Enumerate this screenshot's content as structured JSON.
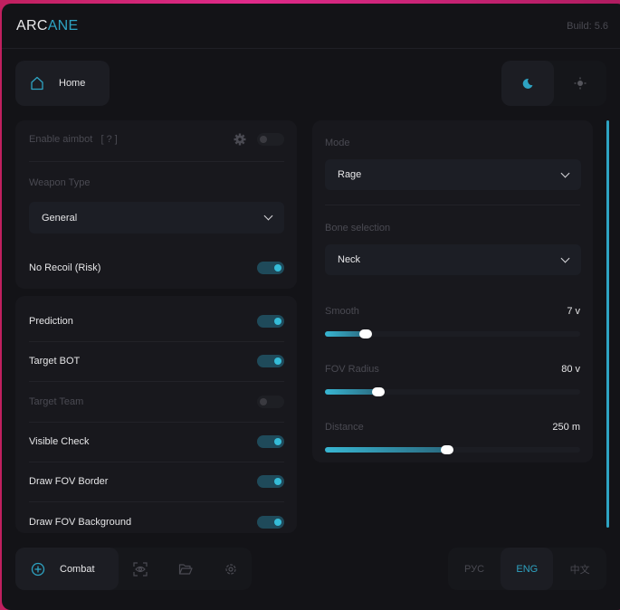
{
  "header": {
    "logo_a": "ARC",
    "logo_b": "ANE",
    "build": "Build: 5.6"
  },
  "top_nav": {
    "home_label": "Home",
    "theme": {
      "dark_icon": "moon-icon",
      "light_icon": "sun-icon",
      "active": "dark"
    }
  },
  "accent": "#2ea3c2",
  "left_panel": {
    "enable_aimbot": {
      "label": "Enable aimbot",
      "help": "[ ? ]",
      "enabled": false
    },
    "weapon_type": {
      "label": "Weapon Type",
      "value": "General"
    },
    "no_recoil": {
      "label": "No Recoil (Risk)",
      "enabled": true
    }
  },
  "toggles": [
    {
      "label": "Prediction",
      "enabled": true
    },
    {
      "label": "Target BOT",
      "enabled": true
    },
    {
      "label": "Target Team",
      "enabled": false
    },
    {
      "label": "Visible Check",
      "enabled": true
    },
    {
      "label": "Draw FOV Border",
      "enabled": true
    },
    {
      "label": "Draw FOV Background",
      "enabled": true
    }
  ],
  "right_panel": {
    "mode": {
      "label": "Mode",
      "value": "Rage"
    },
    "bone": {
      "label": "Bone selection",
      "value": "Neck"
    },
    "sliders": [
      {
        "label": "Smooth",
        "value": "7 v",
        "fraction": 0.16
      },
      {
        "label": "FOV Radius",
        "value": "80 v",
        "fraction": 0.21
      },
      {
        "label": "Distance",
        "value": "250 m",
        "fraction": 0.48
      }
    ]
  },
  "bottom_nav": {
    "active_label": "Combat",
    "items": [
      "crosshair-icon",
      "eye-scan-icon",
      "folder-icon",
      "gear-icon"
    ]
  },
  "languages": {
    "items": [
      "РУС",
      "ENG",
      "中文"
    ],
    "active": "ENG"
  }
}
